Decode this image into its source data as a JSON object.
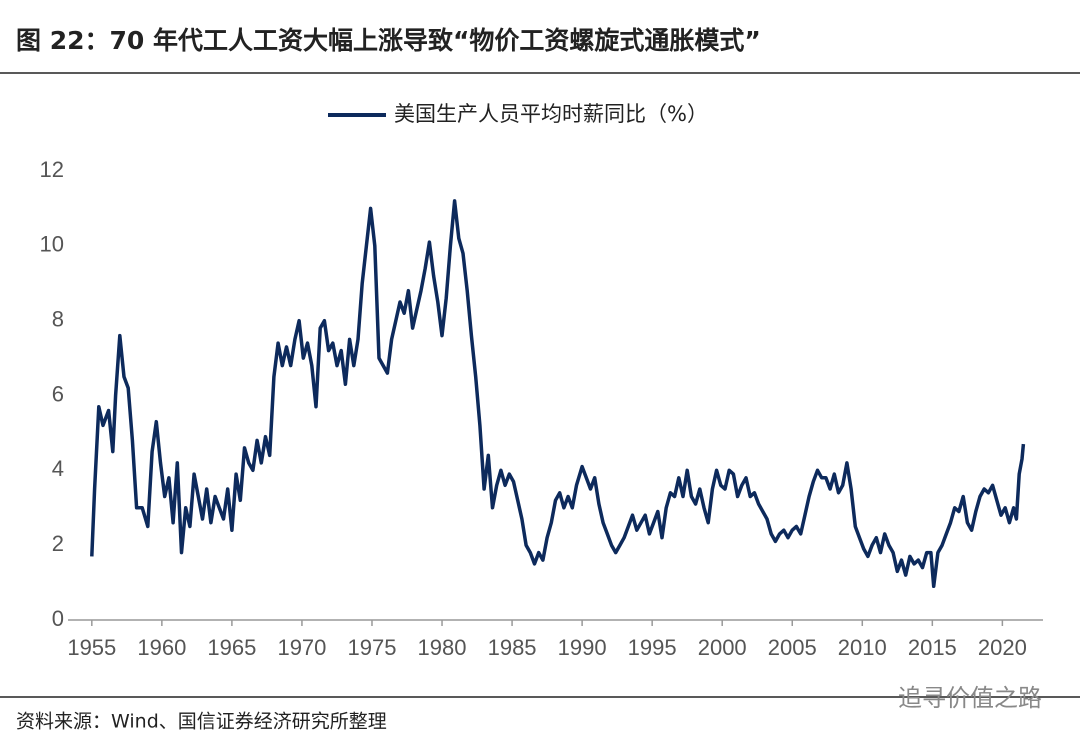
{
  "chart_data": {
    "type": "line",
    "title": "图 22：70 年代工人工资大幅上涨导致“物价工资螺旋式通胀模式”",
    "source": "资料来源：Wind、国信证券经济研究所整理",
    "watermark": "追寻价值之路",
    "xlim": [
      1953.3,
      2022.9
    ],
    "xticks": [
      1955,
      1960,
      1965,
      1970,
      1975,
      1980,
      1985,
      1990,
      1995,
      2000,
      2005,
      2010,
      2015,
      2020
    ],
    "ylim": [
      0,
      12
    ],
    "yticks": [
      0,
      2,
      4,
      6,
      8,
      10,
      12
    ],
    "grid": false,
    "legend": "top",
    "x": [
      1955.0,
      1955.2,
      1955.5,
      1955.8,
      1956.2,
      1956.5,
      1956.7,
      1957.0,
      1957.3,
      1957.6,
      1957.9,
      1958.2,
      1958.6,
      1959.0,
      1959.3,
      1959.6,
      1959.9,
      1960.2,
      1960.5,
      1960.8,
      1961.1,
      1961.4,
      1961.7,
      1962.0,
      1962.3,
      1962.6,
      1962.9,
      1963.2,
      1963.5,
      1963.8,
      1964.1,
      1964.4,
      1964.7,
      1965.0,
      1965.3,
      1965.6,
      1965.9,
      1966.2,
      1966.5,
      1966.8,
      1967.1,
      1967.4,
      1967.7,
      1968.0,
      1968.3,
      1968.6,
      1968.9,
      1969.2,
      1969.5,
      1969.8,
      1970.1,
      1970.4,
      1970.7,
      1971.0,
      1971.3,
      1971.6,
      1971.9,
      1972.2,
      1972.5,
      1972.8,
      1973.1,
      1973.4,
      1973.7,
      1974.0,
      1974.3,
      1974.6,
      1974.9,
      1975.2,
      1975.5,
      1975.8,
      1976.1,
      1976.4,
      1976.7,
      1977.0,
      1977.3,
      1977.6,
      1977.9,
      1978.2,
      1978.5,
      1978.8,
      1979.1,
      1979.4,
      1979.7,
      1980.0,
      1980.3,
      1980.6,
      1980.9,
      1981.2,
      1981.5,
      1981.8,
      1982.1,
      1982.4,
      1982.7,
      1983.0,
      1983.3,
      1983.6,
      1983.9,
      1984.2,
      1984.5,
      1984.8,
      1985.1,
      1985.4,
      1985.7,
      1986.0,
      1986.3,
      1986.6,
      1986.9,
      1987.2,
      1987.5,
      1987.8,
      1988.1,
      1988.4,
      1988.7,
      1989.0,
      1989.3,
      1989.6,
      1990.0,
      1990.3,
      1990.6,
      1990.9,
      1991.2,
      1991.5,
      1991.8,
      1992.1,
      1992.4,
      1992.7,
      1993.0,
      1993.3,
      1993.6,
      1993.9,
      1994.2,
      1994.5,
      1994.8,
      1995.1,
      1995.4,
      1995.7,
      1996.0,
      1996.3,
      1996.6,
      1996.9,
      1997.2,
      1997.5,
      1997.8,
      1998.1,
      1998.4,
      1998.7,
      1999.0,
      1999.3,
      1999.6,
      1999.9,
      2000.2,
      2000.5,
      2000.8,
      2001.1,
      2001.4,
      2001.7,
      2002.0,
      2002.3,
      2002.6,
      2002.9,
      2003.2,
      2003.5,
      2003.8,
      2004.1,
      2004.4,
      2004.7,
      2005.0,
      2005.3,
      2005.6,
      2005.9,
      2006.2,
      2006.5,
      2006.8,
      2007.1,
      2007.4,
      2007.7,
      2008.0,
      2008.3,
      2008.6,
      2008.9,
      2009.2,
      2009.5,
      2009.8,
      2010.1,
      2010.4,
      2010.7,
      2011.0,
      2011.3,
      2011.6,
      2011.9,
      2012.2,
      2012.5,
      2012.8,
      2013.1,
      2013.4,
      2013.7,
      2014.0,
      2014.3,
      2014.6,
      2014.9,
      2015.1,
      2015.4,
      2015.7,
      2016.0,
      2016.3,
      2016.6,
      2016.9,
      2017.2,
      2017.5,
      2017.8,
      2018.1,
      2018.4,
      2018.7,
      2019.0,
      2019.3,
      2019.6,
      2019.9,
      2020.2,
      2020.5,
      2020.8,
      2021.0,
      2021.2,
      2021.4,
      2021.5
    ],
    "series": [
      {
        "name": "美国生产人员平均时薪同比（%）",
        "color": "#0d2a5c",
        "values": [
          1.7,
          3.5,
          5.7,
          5.2,
          5.6,
          4.5,
          6.0,
          7.6,
          6.5,
          6.2,
          4.8,
          3.0,
          3.0,
          2.5,
          4.5,
          5.3,
          4.2,
          3.3,
          3.8,
          2.6,
          4.2,
          1.8,
          3.0,
          2.5,
          3.9,
          3.3,
          2.7,
          3.5,
          2.6,
          3.3,
          3.0,
          2.7,
          3.5,
          2.4,
          3.9,
          3.2,
          4.6,
          4.2,
          4.0,
          4.8,
          4.2,
          4.9,
          4.4,
          6.5,
          7.4,
          6.8,
          7.3,
          6.8,
          7.5,
          8.0,
          7.0,
          7.4,
          6.8,
          5.7,
          7.8,
          8.0,
          7.2,
          7.4,
          6.8,
          7.2,
          6.3,
          7.5,
          6.8,
          7.5,
          9.0,
          10.0,
          11.0,
          10.0,
          7.0,
          6.8,
          6.6,
          7.5,
          8.0,
          8.5,
          8.2,
          8.8,
          7.8,
          8.3,
          8.8,
          9.4,
          10.1,
          9.2,
          8.5,
          7.6,
          8.6,
          10.0,
          11.2,
          10.2,
          9.8,
          8.8,
          7.6,
          6.5,
          5.2,
          3.5,
          4.4,
          3.0,
          3.6,
          4.0,
          3.6,
          3.9,
          3.7,
          3.2,
          2.7,
          2.0,
          1.8,
          1.5,
          1.8,
          1.6,
          2.2,
          2.6,
          3.2,
          3.4,
          3.0,
          3.3,
          3.0,
          3.6,
          4.1,
          3.8,
          3.5,
          3.8,
          3.1,
          2.6,
          2.3,
          2.0,
          1.8,
          2.0,
          2.2,
          2.5,
          2.8,
          2.4,
          2.6,
          2.8,
          2.3,
          2.6,
          2.9,
          2.2,
          3.0,
          3.4,
          3.3,
          3.8,
          3.3,
          4.0,
          3.3,
          3.1,
          3.5,
          3.0,
          2.6,
          3.5,
          4.0,
          3.6,
          3.5,
          4.0,
          3.9,
          3.3,
          3.6,
          3.8,
          3.3,
          3.4,
          3.1,
          2.9,
          2.7,
          2.3,
          2.1,
          2.3,
          2.4,
          2.2,
          2.4,
          2.5,
          2.3,
          2.8,
          3.3,
          3.7,
          4.0,
          3.8,
          3.8,
          3.5,
          3.9,
          3.4,
          3.6,
          4.2,
          3.5,
          2.5,
          2.2,
          1.9,
          1.7,
          2.0,
          2.2,
          1.8,
          2.3,
          2.0,
          1.8,
          1.3,
          1.6,
          1.2,
          1.7,
          1.5,
          1.6,
          1.4,
          1.8,
          1.8,
          0.9,
          1.8,
          2.0,
          2.3,
          2.6,
          3.0,
          2.9,
          3.3,
          2.6,
          2.4,
          2.9,
          3.3,
          3.5,
          3.4,
          3.6,
          3.2,
          2.8,
          3.0,
          2.6,
          3.0,
          2.7,
          3.9,
          4.3,
          4.7
        ]
      }
    ]
  }
}
